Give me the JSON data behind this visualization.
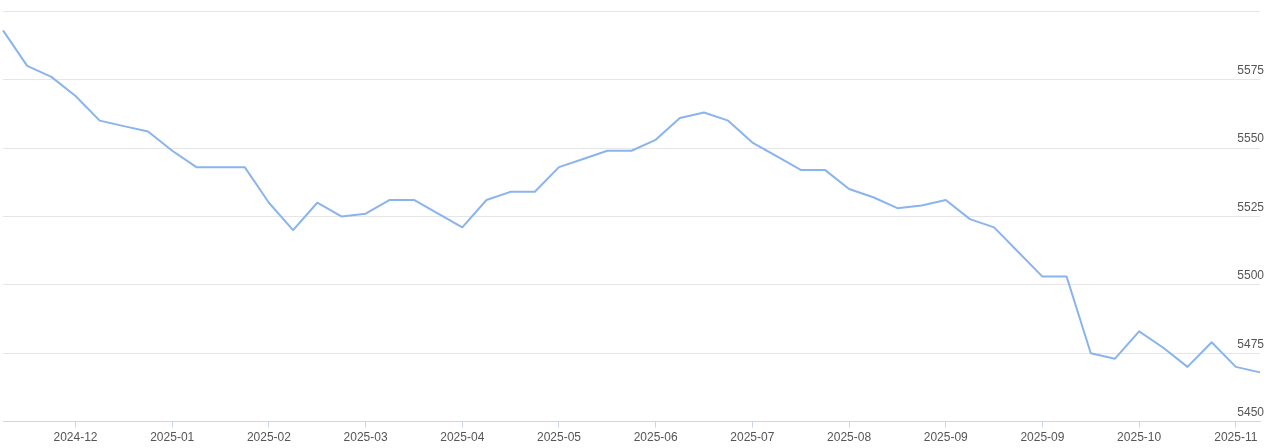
{
  "chart_data": {
    "type": "line",
    "categories": [
      null,
      null,
      null,
      "2024-12",
      null,
      null,
      null,
      "2025-01",
      null,
      null,
      null,
      "2025-02",
      null,
      null,
      null,
      "2025-03",
      null,
      null,
      null,
      "2025-04",
      null,
      null,
      null,
      "2025-05",
      null,
      null,
      null,
      "2025-06",
      null,
      null,
      null,
      "2025-07",
      null,
      null,
      null,
      "2025-08",
      null,
      null,
      null,
      "2025-09",
      null,
      null,
      null,
      "2025-09",
      null,
      null,
      null,
      "2025-10",
      null,
      null,
      null,
      "2025-11",
      null
    ],
    "series": [
      {
        "color": "#8ab4ee",
        "values": [
          5593,
          5580,
          5576,
          5569,
          5560,
          5558,
          5556,
          5549,
          5543,
          5543,
          5543,
          5530,
          5520,
          5530,
          5525,
          5526,
          5531,
          5531,
          5526,
          5521,
          5531,
          5534,
          5534,
          5543,
          5546,
          5549,
          5549,
          5553,
          5561,
          5563,
          5560,
          5552,
          5547,
          5542,
          5542,
          5535,
          5532,
          5528,
          5529,
          5531,
          5524,
          5521,
          5512,
          5503,
          5503,
          5475,
          5473,
          5483,
          5477,
          5470,
          5479,
          5470,
          5468
        ]
      }
    ],
    "ylim": [
      5450,
      5600
    ],
    "yticks": [
      5450,
      5475,
      5500,
      5525,
      5550,
      5575,
      {
        "value": 5600,
        "label": null
      }
    ],
    "grid": "y",
    "legend": false,
    "marker": "none",
    "line_style": "solid"
  }
}
